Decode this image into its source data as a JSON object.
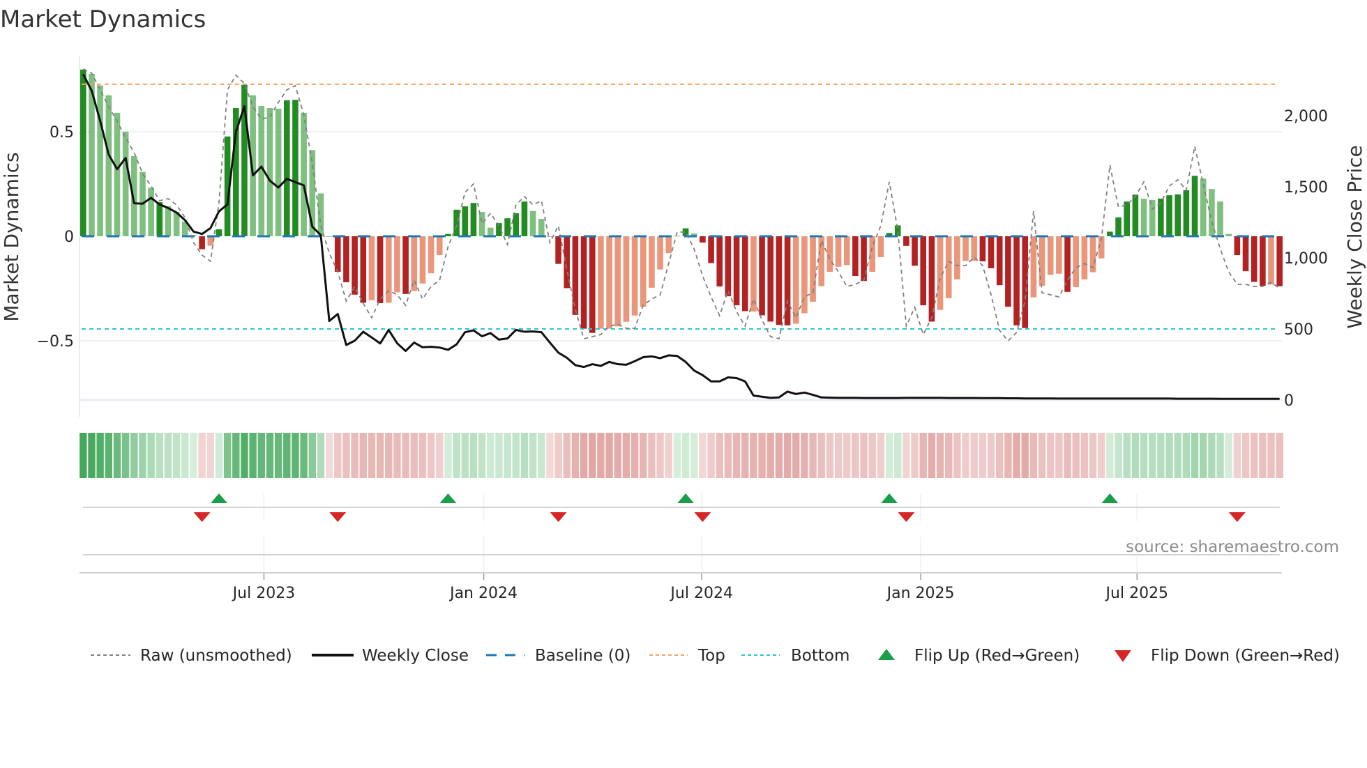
{
  "title": "Market Dynamics",
  "source": "source: sharemaestro.com",
  "chart_data": {
    "type": "bar",
    "title": "Market Dynamics",
    "ylabel": "Market Dynamics",
    "y2label": "Weekly Close Price",
    "ylim": [
      -0.863,
      0.863
    ],
    "y2lim": [
      -118,
      2422
    ],
    "grid": true,
    "legend_position": "bottom",
    "yticks": [
      {
        "v": 0.5,
        "label": "0.5"
      },
      {
        "v": 0,
        "label": "0"
      },
      {
        "v": -0.5,
        "label": "−0.5"
      }
    ],
    "y2ticks": [
      {
        "v": 2000,
        "label": "2,000"
      },
      {
        "v": 1500,
        "label": "1,500"
      },
      {
        "v": 1000,
        "label": "1,000"
      },
      {
        "v": 500,
        "label": "500"
      },
      {
        "v": 0,
        "label": "0"
      }
    ],
    "xticks": [
      {
        "week_index": 21.3,
        "label": "Jul 2023"
      },
      {
        "week_index": 47.2,
        "label": "Jan 2024"
      },
      {
        "week_index": 72.9,
        "label": "Jul 2024"
      },
      {
        "week_index": 98.7,
        "label": "Jan 2025"
      },
      {
        "week_index": 124.2,
        "label": "Jul 2025"
      }
    ],
    "baseline": 0,
    "top_level": 0.727,
    "bottom_level": -0.443,
    "market_dynamics": [
      0.797,
      0.777,
      0.721,
      0.674,
      0.59,
      0.5,
      0.383,
      0.308,
      0.232,
      0.163,
      0.143,
      0.117,
      0.07,
      0.005,
      -0.062,
      -0.045,
      0.033,
      0.477,
      0.613,
      0.724,
      0.674,
      0.623,
      0.613,
      0.61,
      0.65,
      0.652,
      0.59,
      0.412,
      0.205,
      -0.003,
      -0.17,
      -0.22,
      -0.279,
      -0.318,
      -0.306,
      -0.32,
      -0.318,
      -0.268,
      -0.276,
      -0.262,
      -0.226,
      -0.177,
      -0.09,
      0.011,
      0.127,
      0.143,
      0.159,
      0.116,
      0.041,
      0.063,
      0.086,
      0.11,
      0.166,
      0.121,
      0.083,
      -0.003,
      -0.132,
      -0.248,
      -0.376,
      -0.442,
      -0.462,
      -0.442,
      -0.442,
      -0.431,
      -0.409,
      -0.379,
      -0.337,
      -0.246,
      -0.159,
      -0.081,
      0.002,
      0.038,
      0.013,
      -0.03,
      -0.128,
      -0.24,
      -0.287,
      -0.33,
      -0.358,
      -0.36,
      -0.378,
      -0.408,
      -0.424,
      -0.426,
      -0.418,
      -0.368,
      -0.313,
      -0.239,
      -0.17,
      -0.146,
      -0.138,
      -0.19,
      -0.214,
      -0.17,
      -0.1,
      0.016,
      0.052,
      -0.046,
      -0.141,
      -0.33,
      -0.408,
      -0.352,
      -0.296,
      -0.206,
      -0.118,
      -0.118,
      -0.12,
      -0.153,
      -0.234,
      -0.337,
      -0.426,
      -0.439,
      -0.292,
      -0.237,
      -0.184,
      -0.179,
      -0.266,
      -0.243,
      -0.206,
      -0.172,
      -0.106,
      0.022,
      0.09,
      0.166,
      0.199,
      0.179,
      0.174,
      0.18,
      0.196,
      0.2,
      0.22,
      0.289,
      0.276,
      0.226,
      0.166,
      0.011,
      -0.09,
      -0.167,
      -0.218,
      -0.237,
      -0.231,
      -0.239
    ],
    "intensity_code": "DLLLLLLLLDLLLLDLDDDDLLLLDDLLLLDDDDLDLLDLLLLDDDDLLDDDDLLLDDDDDLLLLLLLLLLDLDDDDDDLDDDDLLLLLLLDDLLDDDDDDLLLLLDDDDDDLLLLDLLLLDDDDLLDDDDDLLLLDDDDLD",
    "raw": [
      0.8,
      0.78,
      0.7,
      0.62,
      0.55,
      0.47,
      0.4,
      0.3,
      0.24,
      0.17,
      0.18,
      0.15,
      0.09,
      -0.03,
      -0.09,
      -0.12,
      0.16,
      0.7,
      0.77,
      0.73,
      0.62,
      0.56,
      0.57,
      0.64,
      0.7,
      0.72,
      0.58,
      0.35,
      0.05,
      -0.08,
      -0.17,
      -0.31,
      -0.24,
      -0.32,
      -0.39,
      -0.3,
      -0.26,
      -0.28,
      -0.33,
      -0.21,
      -0.3,
      -0.24,
      -0.21,
      -0.05,
      0.05,
      0.21,
      0.25,
      0.06,
      0.11,
      0.05,
      -0.04,
      0.15,
      0.19,
      0.15,
      0.17,
      -0.03,
      0.05,
      -0.16,
      -0.35,
      -0.49,
      -0.48,
      -0.47,
      -0.43,
      -0.42,
      -0.44,
      -0.44,
      -0.33,
      -0.3,
      -0.28,
      -0.13,
      0.02,
      0.02,
      -0.06,
      -0.19,
      -0.29,
      -0.38,
      -0.26,
      -0.36,
      -0.43,
      -0.3,
      -0.4,
      -0.48,
      -0.49,
      -0.31,
      -0.39,
      -0.29,
      -0.27,
      -0.02,
      -0.11,
      -0.17,
      -0.24,
      -0.23,
      -0.21,
      -0.05,
      0.05,
      0.26,
      0.03,
      -0.43,
      -0.34,
      -0.47,
      -0.39,
      -0.2,
      -0.12,
      -0.14,
      -0.14,
      -0.1,
      -0.14,
      -0.28,
      -0.45,
      -0.5,
      -0.46,
      -0.31,
      0.12,
      -0.27,
      -0.28,
      -0.29,
      -0.21,
      -0.15,
      -0.13,
      -0.15,
      -0.01,
      0.34,
      0.14,
      0.15,
      0.19,
      0.26,
      0.13,
      0.16,
      0.24,
      0.27,
      0.22,
      0.43,
      0.25,
      0.07,
      -0.06,
      -0.17,
      -0.23,
      -0.23,
      -0.24,
      -0.24,
      -0.22,
      -0.25
    ],
    "weekly_close": [
      2291,
      2176,
      1964,
      1727,
      1624,
      1703,
      1384,
      1381,
      1422,
      1376,
      1351,
      1319,
      1265,
      1185,
      1168,
      1209,
      1327,
      1376,
      1887,
      2067,
      1580,
      1642,
      1543,
      1495,
      1556,
      1533,
      1510,
      1219,
      1160,
      556,
      605,
      387,
      417,
      480,
      440,
      398,
      493,
      399,
      345,
      404,
      371,
      374,
      369,
      353,
      391,
      477,
      490,
      448,
      471,
      425,
      433,
      493,
      480,
      482,
      477,
      404,
      333,
      297,
      245,
      232,
      252,
      240,
      268,
      252,
      248,
      273,
      301,
      307,
      294,
      314,
      310,
      268,
      207,
      175,
      131,
      131,
      159,
      154,
      131,
      31,
      23,
      15,
      18,
      59,
      42,
      52,
      36,
      18,
      16,
      15,
      15,
      15,
      14,
      14,
      14,
      14,
      14,
      15,
      15,
      15,
      15,
      15,
      14,
      14,
      14,
      14,
      13,
      13,
      13,
      12,
      12,
      11,
      11,
      11,
      11,
      10,
      10,
      10,
      10,
      10,
      10,
      10,
      10,
      10,
      10,
      10,
      10,
      10,
      10,
      9,
      9,
      9,
      9,
      9,
      8,
      8,
      8,
      8,
      8,
      8,
      8,
      8
    ],
    "flips_up": [
      16,
      43,
      71,
      95,
      121
    ],
    "flips_down": [
      14,
      30,
      56,
      73,
      97,
      136
    ],
    "legend": [
      {
        "key": "raw",
        "label": "Raw (unsmoothed)"
      },
      {
        "key": "close",
        "label": "Weekly Close"
      },
      {
        "key": "baseline",
        "label": "Baseline (0)"
      },
      {
        "key": "top",
        "label": "Top"
      },
      {
        "key": "bottom",
        "label": "Bottom"
      },
      {
        "key": "up",
        "label": "Flip Up (Red→Green)"
      },
      {
        "key": "down",
        "label": "Flip Down (Green→Red)"
      }
    ],
    "colors": {
      "green_strong": "#228b22",
      "green_light": "#7fbf7f",
      "red_strong": "#b22222",
      "red_light": "#e9967a",
      "raw": "#808080",
      "close": "#111111",
      "baseline": "#1f77b4",
      "top": "#f4a261",
      "bottom": "#2ec4d6",
      "flip_up": "#1a9e4a",
      "flip_down": "#d62728"
    }
  }
}
